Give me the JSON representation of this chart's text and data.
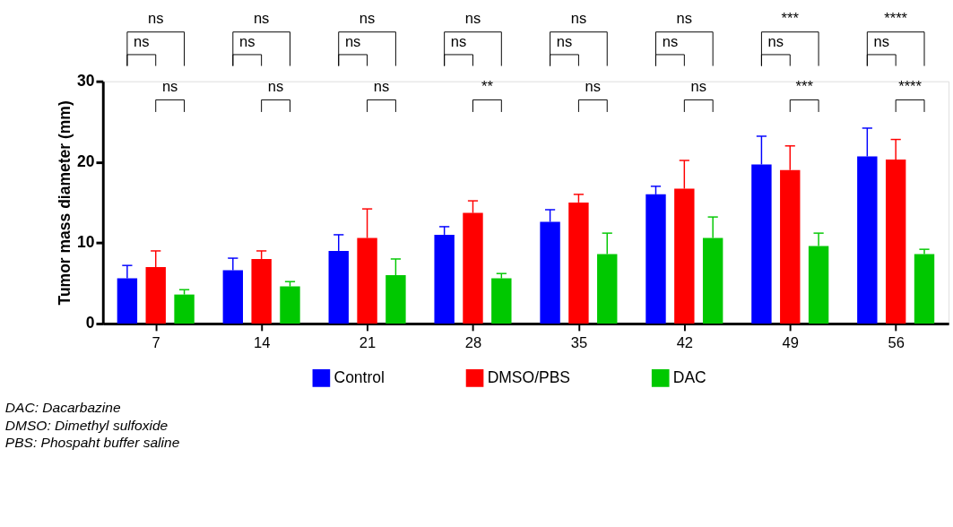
{
  "chart_data": {
    "type": "bar",
    "ylabel": "Tumor mass diameter (mm)",
    "categories": [
      "7",
      "14",
      "21",
      "28",
      "35",
      "42",
      "49",
      "56"
    ],
    "series": [
      {
        "name": "Control",
        "color": "#0000ff",
        "values": [
          5.6,
          6.6,
          9.0,
          11.0,
          12.6,
          16.0,
          19.7,
          20.7
        ],
        "errors": [
          [
            5.6,
            7.2
          ],
          [
            6.6,
            8.1
          ],
          [
            9.0,
            11.0
          ],
          [
            11.0,
            12.0
          ],
          [
            12.6,
            14.1
          ],
          [
            16.0,
            17.0
          ],
          [
            19.7,
            23.2
          ],
          [
            20.7,
            24.2
          ]
        ]
      },
      {
        "name": "DMSO/PBS",
        "color": "#ff0000",
        "values": [
          7.0,
          8.0,
          10.6,
          13.7,
          15.0,
          16.7,
          19.0,
          20.3
        ],
        "errors": [
          [
            7.0,
            9.0
          ],
          [
            8.0,
            9.0
          ],
          [
            10.6,
            14.2
          ],
          [
            13.7,
            15.2
          ],
          [
            15.0,
            16.0
          ],
          [
            16.7,
            20.2
          ],
          [
            19.0,
            22.0
          ],
          [
            20.3,
            22.8
          ]
        ]
      },
      {
        "name": "DAC",
        "color": "#00c800",
        "values": [
          3.6,
          4.6,
          6.0,
          5.6,
          8.6,
          10.6,
          9.6,
          8.6
        ],
        "errors": [
          [
            3.6,
            4.2
          ],
          [
            4.6,
            5.2
          ],
          [
            6.0,
            8.0
          ],
          [
            5.6,
            6.2
          ],
          [
            8.6,
            11.2
          ],
          [
            10.6,
            13.2
          ],
          [
            9.6,
            11.2
          ],
          [
            8.6,
            9.2
          ]
        ]
      }
    ],
    "ylim": [
      0,
      30
    ],
    "yticks": [
      0,
      10,
      20,
      30
    ],
    "legend": "bottom",
    "annotations": [
      "ns",
      "ns",
      "ns",
      "ns",
      "ns",
      "ns",
      "ns",
      "ns",
      "ns",
      "ns",
      "ns",
      "**",
      "ns",
      "ns",
      "ns",
      "ns",
      "ns",
      "ns",
      "***",
      "ns",
      "***",
      "****",
      "ns",
      "****",
      "DAC: Dacarbazine",
      "DMSO: Dimethyl sulfoxide",
      "PBS: Phospaht buffer saline"
    ]
  }
}
